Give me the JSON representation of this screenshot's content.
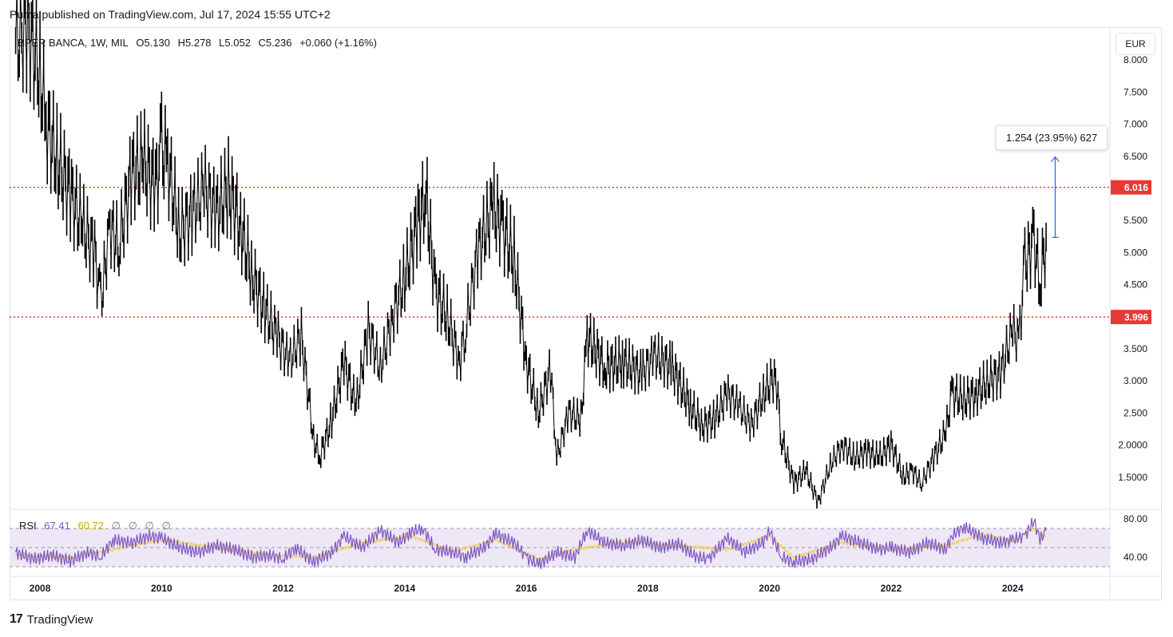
{
  "header": {
    "publisher_line": "Puma published on TradingView.com, Jul 17, 2024 15:55 UTC+2"
  },
  "legend": {
    "symbol": "BPER BANCA, 1W, MIL",
    "open": "O5.130",
    "high": "H5.278",
    "low": "L5.052",
    "close": "C5.236",
    "change": "+0.060 (+1.16%)"
  },
  "currency_label": "EUR",
  "measure_label": "1.254 (23.95%) 627",
  "rsi_legend": {
    "name": "RSI",
    "value": "67.41",
    "ma_value": "60.72",
    "extras": [
      "∅",
      "∅",
      "∅",
      "∅"
    ]
  },
  "footer": {
    "brand": "TradingView",
    "logo_text": "17"
  },
  "colors": {
    "candle": "#000000",
    "level_line": "#e53935",
    "rsi_line": "#7e57c2",
    "rsi_ma": "#f2c94c",
    "rsi_band": "#ede7f6",
    "measure": "#2962ff",
    "grid": "#f0f3fa",
    "axis_text": "#131722"
  },
  "chart_data": [
    {
      "type": "line",
      "title": "BPER BANCA, 1W, MIL",
      "x_tick_labels": [
        "2008",
        "2010",
        "2012",
        "2014",
        "2016",
        "2018",
        "2020",
        "2022",
        "2024"
      ],
      "y_tick_labels": [
        "1.5000",
        "2.0000",
        "2.500",
        "3.000",
        "3.500",
        "4.500",
        "5.000",
        "5.500",
        "6.500",
        "7.000",
        "7.500",
        "8.000"
      ],
      "ylim": [
        1.0,
        8.5
      ],
      "xlim": [
        2007.5,
        2025.6
      ],
      "price_levels": [
        {
          "label": "6.016",
          "value": 6.016
        },
        {
          "label": "3.996",
          "value": 3.996
        }
      ],
      "measure": {
        "from": 5.236,
        "to": 6.49,
        "at_x": 2024.7
      },
      "series": [
        {
          "x": [
            2007.6,
            2007.8,
            2008.0,
            2008.1,
            2008.3,
            2008.5,
            2008.7,
            2008.9,
            2009.0,
            2009.15,
            2009.3,
            2009.5,
            2009.7,
            2009.9,
            2010.0,
            2010.1,
            2010.3,
            2010.5,
            2010.7,
            2010.9,
            2011.1,
            2011.3,
            2011.5,
            2011.7,
            2011.9,
            2012.1,
            2012.3,
            2012.5,
            2012.6,
            2012.8,
            2013.0,
            2013.2,
            2013.4,
            2013.6,
            2013.8,
            2014.0,
            2014.2,
            2014.35,
            2014.5,
            2014.7,
            2014.9,
            2015.0,
            2015.2,
            2015.45,
            2015.6,
            2015.8,
            2016.0,
            2016.2,
            2016.4,
            2016.5,
            2016.7,
            2016.9,
            2017.0,
            2017.3,
            2017.6,
            2017.9,
            2018.1,
            2018.4,
            2018.7,
            2018.9,
            2019.1,
            2019.3,
            2019.5,
            2019.7,
            2019.9,
            2020.1,
            2020.2,
            2020.4,
            2020.6,
            2020.8,
            2021.0,
            2021.2,
            2021.4,
            2021.6,
            2021.8,
            2022.0,
            2022.2,
            2022.35,
            2022.5,
            2022.7,
            2022.9,
            2023.0,
            2023.2,
            2023.4,
            2023.6,
            2023.8,
            2024.0,
            2024.1,
            2024.2,
            2024.35,
            2024.45,
            2024.55
          ],
          "y": [
            8.3,
            8.5,
            7.8,
            7.0,
            6.4,
            5.9,
            5.4,
            5.0,
            4.2,
            5.4,
            5.1,
            6.2,
            6.4,
            6.0,
            6.6,
            6.4,
            5.3,
            5.6,
            6.0,
            5.6,
            6.0,
            5.4,
            4.6,
            4.1,
            3.7,
            3.3,
            3.7,
            2.1,
            1.8,
            2.4,
            3.3,
            2.6,
            3.8,
            3.2,
            4.0,
            4.6,
            5.4,
            5.9,
            4.4,
            4.0,
            3.3,
            3.8,
            5.0,
            5.7,
            5.4,
            4.9,
            3.3,
            2.5,
            3.2,
            1.8,
            2.5,
            2.4,
            3.7,
            3.2,
            3.3,
            3.1,
            3.4,
            3.2,
            2.6,
            2.3,
            2.4,
            2.8,
            2.6,
            2.3,
            2.8,
            3.1,
            2.1,
            1.4,
            1.6,
            1.1,
            1.7,
            2.0,
            1.8,
            1.9,
            1.8,
            2.0,
            1.5,
            1.6,
            1.4,
            1.8,
            2.2,
            2.8,
            2.7,
            2.8,
            3.0,
            3.1,
            3.8,
            3.6,
            4.8,
            5.2,
            4.5,
            5.24
          ]
        }
      ]
    },
    {
      "type": "line",
      "title": "RSI",
      "y_tick_labels": [
        "40.00",
        "80.00"
      ],
      "ylim": [
        20,
        90
      ],
      "band": [
        30,
        70
      ],
      "series": [
        {
          "name": "RSI",
          "x": [
            2007.6,
            2007.9,
            2008.2,
            2008.5,
            2008.8,
            2009.0,
            2009.2,
            2009.5,
            2009.8,
            2010.0,
            2010.3,
            2010.6,
            2010.9,
            2011.2,
            2011.5,
            2011.8,
            2012.0,
            2012.2,
            2012.5,
            2012.8,
            2013.0,
            2013.3,
            2013.6,
            2013.9,
            2014.1,
            2014.3,
            2014.5,
            2014.8,
            2015.0,
            2015.3,
            2015.5,
            2015.8,
            2016.0,
            2016.2,
            2016.5,
            2016.8,
            2017.0,
            2017.3,
            2017.6,
            2017.9,
            2018.2,
            2018.5,
            2018.8,
            2019.0,
            2019.3,
            2019.6,
            2019.9,
            2020.0,
            2020.2,
            2020.4,
            2020.7,
            2021.0,
            2021.2,
            2021.5,
            2021.8,
            2022.0,
            2022.3,
            2022.6,
            2022.9,
            2023.0,
            2023.2,
            2023.5,
            2023.8,
            2024.0,
            2024.2,
            2024.35,
            2024.45,
            2024.55
          ],
          "y": [
            45,
            38,
            42,
            36,
            45,
            40,
            58,
            55,
            62,
            60,
            50,
            45,
            52,
            48,
            40,
            42,
            38,
            50,
            35,
            45,
            62,
            50,
            68,
            55,
            66,
            70,
            48,
            45,
            40,
            50,
            64,
            55,
            40,
            32,
            45,
            40,
            68,
            55,
            52,
            58,
            50,
            54,
            40,
            38,
            60,
            45,
            56,
            68,
            40,
            35,
            38,
            50,
            62,
            55,
            48,
            50,
            45,
            55,
            48,
            62,
            72,
            60,
            55,
            58,
            62,
            78,
            58,
            67.41
          ]
        },
        {
          "name": "RSI-based MA",
          "x": [
            2007.6,
            2008.5,
            2009.2,
            2010.0,
            2010.9,
            2011.8,
            2012.5,
            2013.3,
            2014.1,
            2014.8,
            2015.5,
            2016.2,
            2016.8,
            2017.6,
            2018.5,
            2019.3,
            2020.0,
            2020.4,
            2021.2,
            2022.0,
            2022.9,
            2023.5,
            2024.0,
            2024.35,
            2024.55
          ],
          "y": [
            42,
            40,
            48,
            58,
            50,
            42,
            40,
            55,
            62,
            46,
            58,
            38,
            48,
            56,
            52,
            48,
            62,
            40,
            55,
            48,
            52,
            64,
            56,
            70,
            60.72
          ]
        }
      ]
    }
  ]
}
